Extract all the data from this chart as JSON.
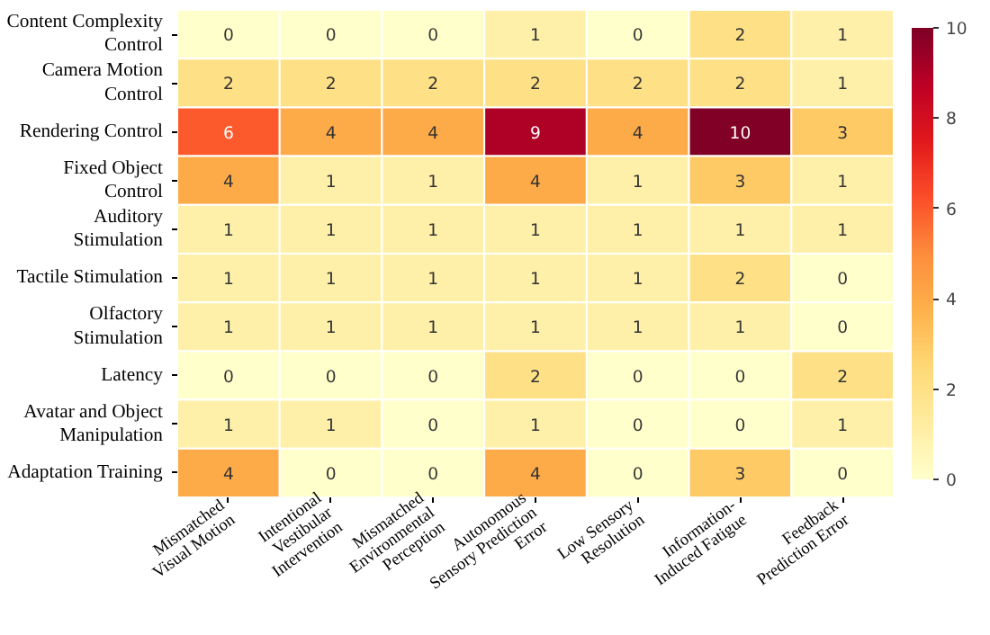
{
  "chart_data": {
    "type": "heatmap",
    "categories": [
      "Mismatched\nVisual Motion",
      "Intentional\nVestibular\nIntervention",
      "Mismatched\nEnvironmental\nPerception",
      "Autonomous\nSensory Prediction\nError",
      "Low Sensory\nResolution",
      "Information-\nInduced Fatigue",
      "Feedback\nPrediction Error"
    ],
    "y_categories": [
      "Content Complexity\nControl",
      "Camera Motion\nControl",
      "Rendering Control",
      "Fixed Object\nControl",
      "Auditory\nStimulation",
      "Tactile Stimulation",
      "Olfactory\nStimulation",
      "Latency",
      "Avatar and Object\nManipulation",
      "Adaptation Training"
    ],
    "cells": [
      [
        0,
        0,
        0,
        1,
        0,
        2,
        1
      ],
      [
        2,
        2,
        2,
        2,
        2,
        2,
        1
      ],
      [
        6,
        4,
        4,
        9,
        4,
        10,
        3
      ],
      [
        4,
        1,
        1,
        4,
        1,
        3,
        1
      ],
      [
        1,
        1,
        1,
        1,
        1,
        1,
        1
      ],
      [
        1,
        1,
        1,
        1,
        1,
        2,
        0
      ],
      [
        1,
        1,
        1,
        1,
        1,
        1,
        0
      ],
      [
        0,
        0,
        0,
        2,
        0,
        0,
        2
      ],
      [
        1,
        1,
        0,
        1,
        0,
        0,
        1
      ],
      [
        4,
        0,
        0,
        4,
        0,
        3,
        0
      ]
    ],
    "data_labels": true,
    "clim": [
      0,
      10
    ],
    "cticks": [
      0,
      2,
      4,
      6,
      8,
      10
    ]
  }
}
